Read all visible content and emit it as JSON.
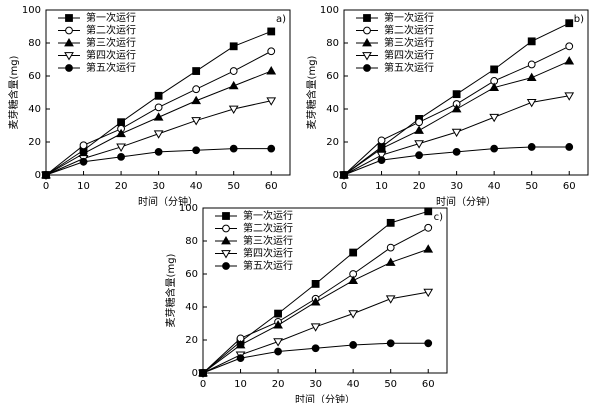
{
  "chart_data": [
    {
      "type": "line",
      "panel_label": "a)",
      "x_label": "时间（分钟）",
      "y_label": "麦芽糖含量(mg)",
      "x": [
        0,
        10,
        20,
        30,
        40,
        50,
        60
      ],
      "xlim": [
        0,
        65
      ],
      "xticks": [
        0,
        10,
        20,
        30,
        40,
        50,
        60
      ],
      "ylim": [
        0,
        100
      ],
      "yticks": [
        0,
        20,
        40,
        60,
        80,
        100
      ],
      "legend": "upper-left",
      "series": [
        {
          "name": "第一次运行",
          "color": "#000000",
          "marker": "square",
          "values": [
            0,
            15,
            32,
            48,
            63,
            78,
            87
          ]
        },
        {
          "name": "第二次运行",
          "color": "#000000",
          "marker": "circle-open",
          "values": [
            0,
            18,
            28,
            41,
            52,
            63,
            75
          ]
        },
        {
          "name": "第三次运行",
          "color": "#000000",
          "marker": "triangle",
          "values": [
            0,
            13,
            25,
            35,
            45,
            54,
            63
          ]
        },
        {
          "name": "第四次运行",
          "color": "#000000",
          "marker": "triangle-down-open",
          "values": [
            0,
            10,
            17,
            25,
            33,
            40,
            45
          ]
        },
        {
          "name": "第五次运行",
          "color": "#000000",
          "marker": "circle",
          "values": [
            0,
            8,
            11,
            14,
            15,
            16,
            16
          ]
        }
      ]
    },
    {
      "type": "line",
      "panel_label": "b)",
      "x_label": "时间（分钟）",
      "y_label": "麦芽糖含量(mg)",
      "x": [
        0,
        10,
        20,
        30,
        40,
        50,
        60
      ],
      "xlim": [
        0,
        65
      ],
      "xticks": [
        0,
        10,
        20,
        30,
        40,
        50,
        60
      ],
      "ylim": [
        0,
        100
      ],
      "yticks": [
        0,
        20,
        40,
        60,
        80,
        100
      ],
      "legend": "upper-left",
      "series": [
        {
          "name": "第一次运行",
          "color": "#000000",
          "marker": "square",
          "values": [
            0,
            17,
            34,
            49,
            64,
            81,
            92
          ]
        },
        {
          "name": "第二次运行",
          "color": "#000000",
          "marker": "circle-open",
          "values": [
            0,
            21,
            32,
            43,
            57,
            67,
            78
          ]
        },
        {
          "name": "第三次运行",
          "color": "#000000",
          "marker": "triangle",
          "values": [
            0,
            16,
            27,
            40,
            53,
            59,
            69
          ]
        },
        {
          "name": "第四次运行",
          "color": "#000000",
          "marker": "triangle-down-open",
          "values": [
            0,
            12,
            19,
            26,
            35,
            44,
            48
          ]
        },
        {
          "name": "第五次运行",
          "color": "#000000",
          "marker": "circle",
          "values": [
            0,
            9,
            12,
            14,
            16,
            17,
            17
          ]
        }
      ]
    },
    {
      "type": "line",
      "panel_label": "c)",
      "x_label": "时间（分钟）",
      "y_label": "麦芽糖含量(mg)",
      "x": [
        0,
        10,
        20,
        30,
        40,
        50,
        60
      ],
      "xlim": [
        0,
        65
      ],
      "xticks": [
        0,
        10,
        20,
        30,
        40,
        50,
        60
      ],
      "ylim": [
        0,
        100
      ],
      "yticks": [
        0,
        20,
        40,
        60,
        80,
        100
      ],
      "legend": "upper-left",
      "series": [
        {
          "name": "第一次运行",
          "color": "#000000",
          "marker": "square",
          "values": [
            0,
            19,
            36,
            54,
            73,
            91,
            98
          ]
        },
        {
          "name": "第二次运行",
          "color": "#000000",
          "marker": "circle-open",
          "values": [
            0,
            21,
            31,
            45,
            60,
            76,
            88
          ]
        },
        {
          "name": "第三次运行",
          "color": "#000000",
          "marker": "triangle",
          "values": [
            0,
            17,
            29,
            43,
            56,
            67,
            75
          ]
        },
        {
          "name": "第四次运行",
          "color": "#000000",
          "marker": "triangle-down-open",
          "values": [
            0,
            11,
            19,
            28,
            36,
            45,
            49
          ]
        },
        {
          "name": "第五次运行",
          "color": "#000000",
          "marker": "circle",
          "values": [
            0,
            9,
            13,
            15,
            17,
            18,
            18
          ]
        }
      ]
    }
  ]
}
